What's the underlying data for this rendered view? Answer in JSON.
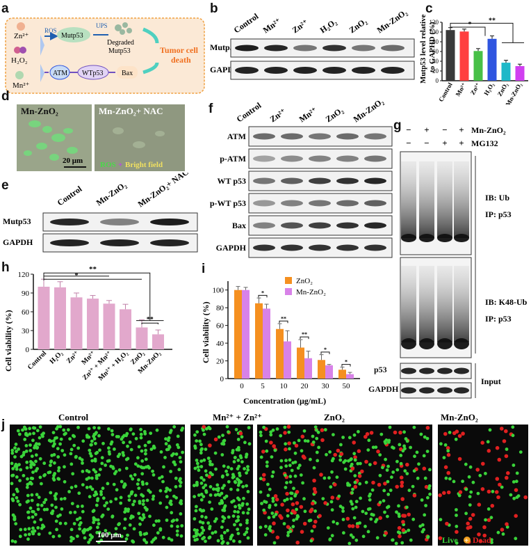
{
  "panels": {
    "a": {
      "letter": "a",
      "zn": "Zn²⁺",
      "h2o2": "H₂O₂",
      "mn": "Mn²⁺",
      "ros": "ROS",
      "ups": "UPS",
      "mutp53": "Mutp53",
      "degraded_l1": "Degraded",
      "degraded_l2": "Mutp53",
      "atm": "ATM",
      "wtp53": "WTp53",
      "bax": "Bax",
      "outcome_l1": "Tumor cell",
      "outcome_l2": "death",
      "colors": {
        "box_bg": "#fbe9d6",
        "box_border": "#f0a040",
        "ros": "#1f5fb0",
        "atm_fill": "#c9dcf5",
        "wtp53_fill": "#e2d4f5",
        "bax_fill": "#fde3c8",
        "outcome": "#f07020",
        "arrow": "#4fd0c0"
      }
    },
    "b": {
      "letter": "b",
      "lanes": [
        "Control",
        "Mn²⁺",
        "Zn²⁺",
        "H₂O₂",
        "ZnO₂",
        "Mn-ZnO₂"
      ],
      "rows": [
        "Mutp53",
        "GAPDH"
      ]
    },
    "c": {
      "letter": "c",
      "ylabel_l1": "Mutp53 level relative",
      "ylabel_l2": "to GAPHD (%)",
      "yticks": [
        "0",
        "20",
        "40",
        "60",
        "80",
        "100",
        "120"
      ],
      "sig": [
        "*",
        "**"
      ],
      "colors": [
        "#3a3a3a",
        "#ff4040",
        "#48c048",
        "#2f55e0",
        "#1fb8c8",
        "#d040f0"
      ]
    },
    "d": {
      "letter": "d",
      "img1_label": "Mn-ZnO₂",
      "img2_label": "Mn-ZnO₂+ NAC",
      "scale": "20 μm",
      "legend_ros": "ROS",
      "legend_plus": "+",
      "legend_bf": "Bright field"
    },
    "e": {
      "letter": "e",
      "lanes": [
        "Control",
        "Mn-ZnO₂",
        "Mn-ZnO₂+ NAC"
      ],
      "rows": [
        "Mutp53",
        "GAPDH"
      ]
    },
    "f": {
      "letter": "f",
      "lanes": [
        "Control",
        "Zn²⁺",
        "Mn²⁺",
        "ZnO₂",
        "Mn-ZnO₂"
      ],
      "rows": [
        "ATM",
        "p-ATM",
        "WT p53",
        "p-WT p53",
        "Bax",
        "GAPDH"
      ]
    },
    "g": {
      "letter": "g",
      "row1_label": "Mn-ZnO₂",
      "row2_label": "MG132",
      "row1_signs": [
        "−",
        "+",
        "−",
        "+"
      ],
      "row2_signs": [
        "−",
        "−",
        "+",
        "+"
      ],
      "blot1_l1": "IB: Ub",
      "blot1_l2": "IP: p53",
      "blot2_l1": "IB: K48-Ub",
      "blot2_l2": "IP: p53",
      "p53": "p53",
      "gapdh": "GAPDH",
      "input": "Input"
    },
    "h": {
      "letter": "h",
      "ylabel": "Cell viability (%)",
      "yticks": [
        "0",
        "30",
        "60",
        "90",
        "120"
      ],
      "sig": [
        "**",
        "*",
        "**"
      ],
      "color": "#e2a8cc"
    },
    "i": {
      "letter": "i",
      "ylabel": "Cell viability (%)",
      "xlabel": "Concentration (μg/mL)",
      "yticks": [
        "0",
        "20",
        "40",
        "60",
        "80",
        "100"
      ],
      "legend": [
        "ZnO₂",
        "Mn-ZnO₂"
      ],
      "sig": [
        "*",
        "**",
        "**",
        "*",
        "*"
      ],
      "colors": [
        "#f59020",
        "#d882e8"
      ]
    },
    "j": {
      "letter": "j",
      "titles": [
        "Control",
        "Mn²⁺ + Zn²⁺",
        "ZnO₂",
        "Mn-ZnO₂"
      ],
      "scale": "100 μm",
      "legend_live": "Live",
      "legend_plus": "+",
      "legend_dead": "Dead",
      "colors": {
        "live": "#3ad43a",
        "dead": "#e02020",
        "bg": "#0a0a0a"
      }
    }
  },
  "chart_data": [
    {
      "panel": "c",
      "type": "bar",
      "categories": [
        "Control",
        "Mn²⁺",
        "Zn²⁺",
        "H₂O₂",
        "ZnO₂",
        "Mn-ZnO₂"
      ],
      "values": [
        104,
        101,
        61,
        86,
        37,
        30
      ],
      "errors": [
        5,
        5,
        5,
        6,
        5,
        4
      ],
      "ylabel": "Mutp53 level relative to GAPHD (%)",
      "ylim": [
        0,
        120
      ]
    },
    {
      "panel": "h",
      "type": "bar",
      "categories": [
        "Control",
        "H₂O₂",
        "Zn²⁺",
        "Mn²⁺",
        "Zn²⁺ + Mn²⁺",
        "Mn²⁺ + H₂O₂",
        "ZnO₂",
        "Mn-ZnO₂"
      ],
      "values": [
        100,
        99,
        83,
        81,
        73,
        64,
        35,
        24
      ],
      "errors": [
        12,
        9,
        7,
        5,
        5,
        8,
        12,
        7
      ],
      "ylabel": "Cell viability (%)",
      "ylim": [
        0,
        120
      ]
    },
    {
      "panel": "i",
      "type": "bar",
      "categories": [
        "0",
        "5",
        "10",
        "20",
        "30",
        "50"
      ],
      "series": [
        {
          "name": "ZnO₂",
          "values": [
            100,
            85,
            56,
            35,
            21,
            10
          ],
          "errors": [
            4,
            6,
            6,
            9,
            6,
            3
          ]
        },
        {
          "name": "Mn-ZnO₂",
          "values": [
            100,
            79,
            42,
            23,
            15,
            5
          ],
          "errors": [
            3,
            5,
            12,
            8,
            1,
            2
          ]
        }
      ],
      "xlabel": "Concentration (μg/mL)",
      "ylabel": "Cell viability (%)",
      "ylim": [
        0,
        110
      ]
    }
  ]
}
